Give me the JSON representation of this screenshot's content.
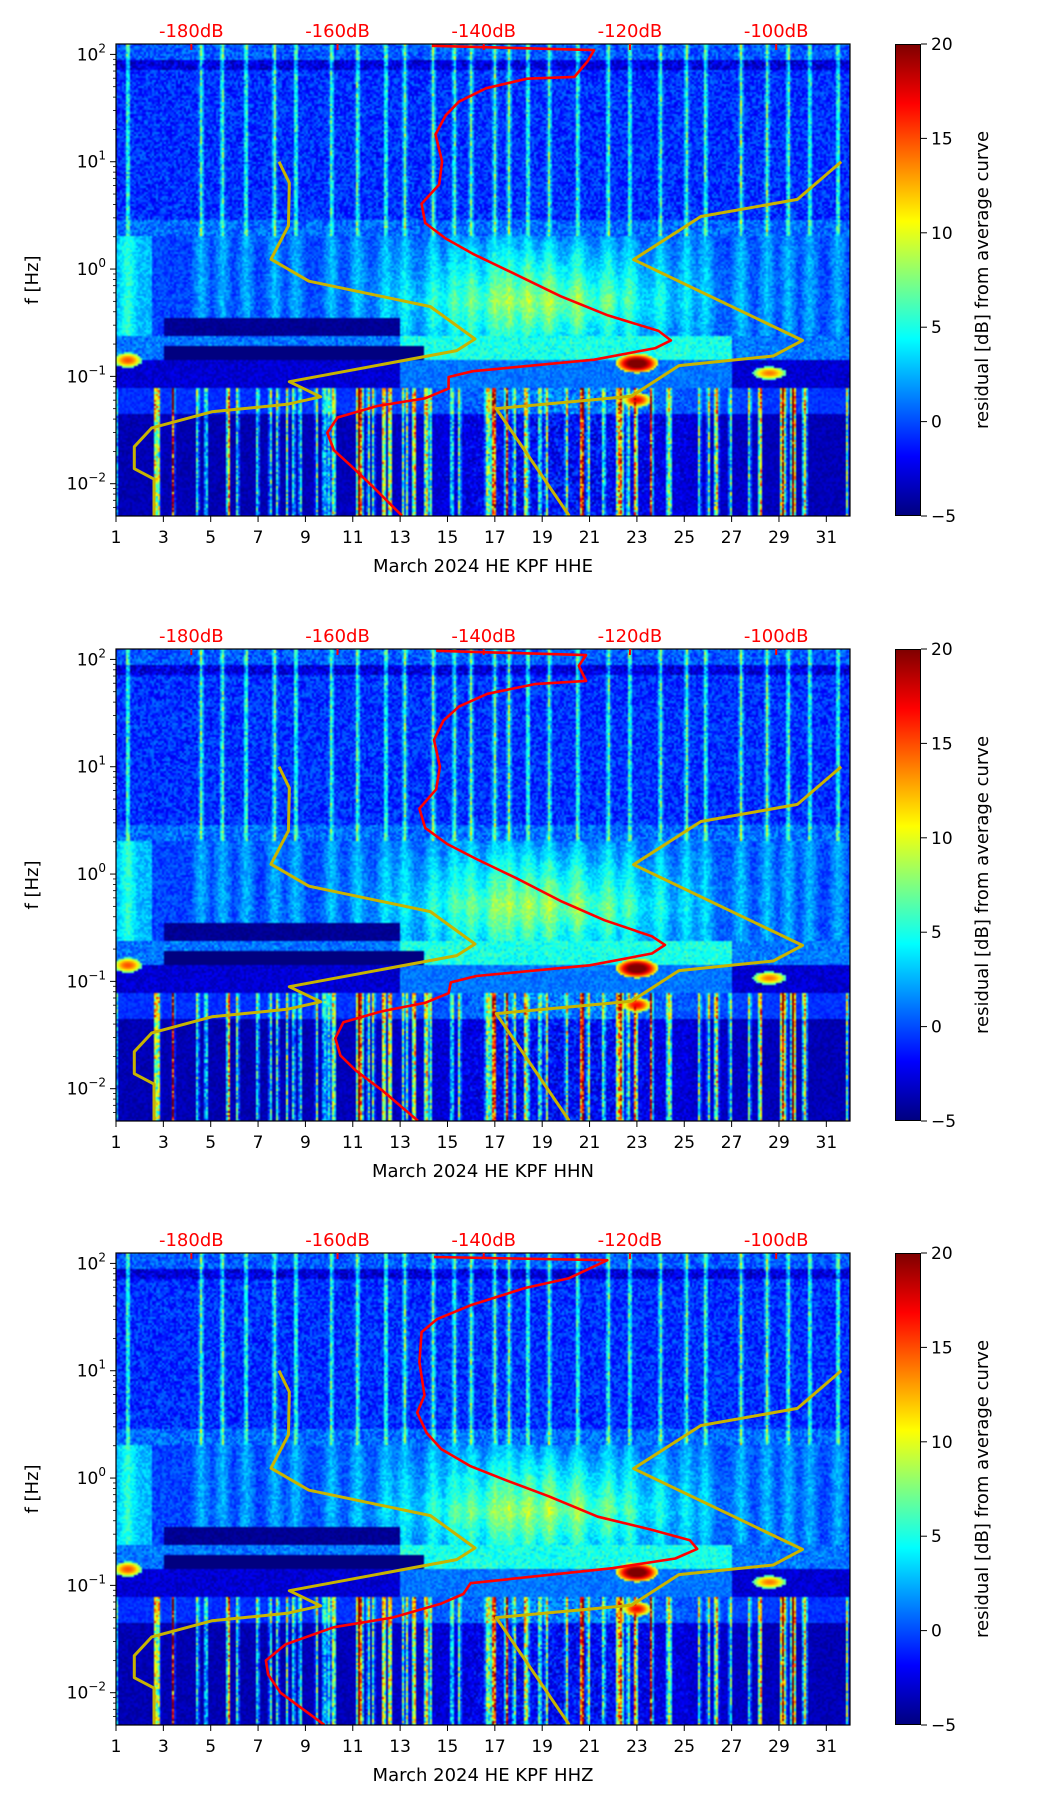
{
  "chart_data": [
    {
      "type": "heatmap",
      "xlabel": "March 2024 HE KPF  HHE",
      "ylabel": "f [Hz]",
      "colorbar_label": "residual [dB] from average curve",
      "xlim": [
        1,
        32
      ],
      "ylim": [
        0.005,
        125
      ],
      "yscale": "log",
      "top_axis_db_range": [
        -190.3,
        -89.9
      ],
      "clim": [
        -5,
        20
      ],
      "median_curve": {
        "color": "#ff0000",
        "points_db_logf": [
          [
            -147.1,
            2.08
          ],
          [
            -124.9,
            2.04
          ],
          [
            -125.8,
            1.935
          ],
          [
            -127.6,
            1.79
          ],
          [
            -134.1,
            1.774
          ],
          [
            -139.7,
            1.684
          ],
          [
            -143.4,
            1.559
          ],
          [
            -145.2,
            1.433
          ],
          [
            -146.6,
            1.254
          ],
          [
            -145.7,
            1.003
          ],
          [
            -146.1,
            0.787
          ],
          [
            -148.5,
            0.608
          ],
          [
            -148.0,
            0.429
          ],
          [
            -145.2,
            0.285
          ],
          [
            -141.5,
            0.142
          ],
          [
            -136.0,
            -0.038
          ],
          [
            -129.5,
            -0.253
          ],
          [
            -123.0,
            -0.432
          ],
          [
            -116.1,
            -0.576
          ],
          [
            -114.4,
            -0.665
          ],
          [
            -116.5,
            -0.737
          ],
          [
            -124.9,
            -0.845
          ],
          [
            -141.5,
            -0.952
          ],
          [
            -144.8,
            -1.006
          ],
          [
            -144.8,
            -1.114
          ],
          [
            -148.0,
            -1.204
          ],
          [
            -154.5,
            -1.275
          ],
          [
            -160.0,
            -1.383
          ],
          [
            -161.4,
            -1.526
          ],
          [
            -160.5,
            -1.688
          ],
          [
            -158.2,
            -1.831
          ],
          [
            -155.4,
            -2.011
          ],
          [
            -151.2,
            -2.298
          ]
        ]
      }
    },
    {
      "type": "heatmap",
      "xlabel": "March 2024 HE KPF  HHN",
      "ylabel": "f [Hz]",
      "colorbar_label": "residual [dB] from average curve",
      "xlim": [
        1,
        32
      ],
      "ylim": [
        0.005,
        125
      ],
      "yscale": "log",
      "top_axis_db_range": [
        -190.3,
        -89.9
      ],
      "clim": [
        -5,
        20
      ],
      "median_curve": {
        "color": "#ff0000",
        "points_db_logf": [
          [
            -146.5,
            2.08
          ],
          [
            -126.0,
            2.04
          ],
          [
            -127.0,
            1.94
          ],
          [
            -126.0,
            1.8
          ],
          [
            -133.0,
            1.77
          ],
          [
            -139.5,
            1.68
          ],
          [
            -143.4,
            1.56
          ],
          [
            -145.5,
            1.43
          ],
          [
            -146.8,
            1.25
          ],
          [
            -146.0,
            1.0
          ],
          [
            -146.5,
            0.79
          ],
          [
            -148.8,
            0.61
          ],
          [
            -148.0,
            0.43
          ],
          [
            -145.0,
            0.28
          ],
          [
            -141.0,
            0.14
          ],
          [
            -135.5,
            -0.04
          ],
          [
            -129.5,
            -0.25
          ],
          [
            -123.5,
            -0.43
          ],
          [
            -117.0,
            -0.58
          ],
          [
            -115.2,
            -0.66
          ],
          [
            -117.0,
            -0.74
          ],
          [
            -125.5,
            -0.85
          ],
          [
            -141.0,
            -0.95
          ],
          [
            -144.5,
            -1.01
          ],
          [
            -144.8,
            -1.11
          ],
          [
            -148.0,
            -1.2
          ],
          [
            -154.0,
            -1.28
          ],
          [
            -159.2,
            -1.38
          ],
          [
            -160.3,
            -1.53
          ],
          [
            -159.6,
            -1.69
          ],
          [
            -157.5,
            -1.83
          ],
          [
            -154.0,
            -2.01
          ],
          [
            -149.0,
            -2.298
          ]
        ]
      }
    },
    {
      "type": "heatmap",
      "xlabel": "March 2024 HE KPF  HHZ",
      "ylabel": "f [Hz]",
      "colorbar_label": "residual [dB] from average curve",
      "xlim": [
        1,
        32
      ],
      "ylim": [
        0.005,
        125
      ],
      "yscale": "log",
      "top_axis_db_range": [
        -190.3,
        -89.9
      ],
      "clim": [
        -5,
        20
      ],
      "median_curve": {
        "color": "#ff0000",
        "points_db_logf": [
          [
            -146.8,
            2.06
          ],
          [
            -123.1,
            2.03
          ],
          [
            -128.4,
            1.86
          ],
          [
            -134.4,
            1.77
          ],
          [
            -141.8,
            1.61
          ],
          [
            -146.4,
            1.48
          ],
          [
            -148.5,
            1.36
          ],
          [
            -148.8,
            1.08
          ],
          [
            -148.1,
            0.77
          ],
          [
            -149.1,
            0.61
          ],
          [
            -147.8,
            0.42
          ],
          [
            -145.8,
            0.27
          ],
          [
            -141.8,
            0.11
          ],
          [
            -137.1,
            -0.016
          ],
          [
            -131.1,
            -0.17
          ],
          [
            -124.4,
            -0.36
          ],
          [
            -117.1,
            -0.48
          ],
          [
            -111.8,
            -0.58
          ],
          [
            -110.8,
            -0.66
          ],
          [
            -113.8,
            -0.75
          ],
          [
            -122.4,
            -0.84
          ],
          [
            -141.8,
            -0.98
          ],
          [
            -142.8,
            -1.08
          ],
          [
            -145.8,
            -1.17
          ],
          [
            -152.5,
            -1.3
          ],
          [
            -160.5,
            -1.39
          ],
          [
            -167.1,
            -1.55
          ],
          [
            -169.8,
            -1.7
          ],
          [
            -169.5,
            -1.83
          ],
          [
            -167.8,
            -2.0
          ],
          [
            -161.8,
            -2.3
          ]
        ]
      }
    }
  ],
  "reference_curves": {
    "color": "#c8b400",
    "nlnm_db_logf": [
      [
        -168.0,
        1.0
      ],
      [
        -166.6,
        0.803
      ],
      [
        -166.7,
        0.404
      ],
      [
        -169.1,
        0.092
      ],
      [
        -163.9,
        -0.113
      ],
      [
        -147.3,
        -0.35
      ],
      [
        -141.2,
        -0.652
      ],
      [
        -143.7,
        -0.76
      ],
      [
        -166.6,
        -1.05
      ],
      [
        -162.3,
        -1.19
      ],
      [
        -166.9,
        -1.26
      ],
      [
        -177.2,
        -1.33
      ],
      [
        -185.4,
        -1.48
      ],
      [
        -187.8,
        -1.655
      ],
      [
        -187.8,
        -1.86
      ],
      [
        -185.1,
        -1.957
      ],
      [
        -185.1,
        -2.3
      ]
    ],
    "nhnm_db_logf": [
      [
        -91.1,
        1.0
      ],
      [
        -97.1,
        0.649
      ],
      [
        -110.3,
        0.49
      ],
      [
        -119.5,
        0.088
      ],
      [
        -96.4,
        -0.665
      ],
      [
        -100.4,
        -0.81
      ],
      [
        -113.3,
        -0.9
      ],
      [
        -119.8,
        -1.186
      ],
      [
        -138.3,
        -1.3
      ],
      [
        -128.3,
        -2.3
      ]
    ]
  },
  "x_ticks": [
    "1",
    "3",
    "5",
    "7",
    "9",
    "11",
    "13",
    "15",
    "17",
    "19",
    "21",
    "23",
    "25",
    "27",
    "29",
    "31"
  ],
  "y_ticks": [
    {
      "base": "10",
      "exp": "2"
    },
    {
      "base": "10",
      "exp": "1"
    },
    {
      "base": "10",
      "exp": "0"
    },
    {
      "base": "10",
      "exp": "−1"
    },
    {
      "base": "10",
      "exp": "−2"
    }
  ],
  "top_ticks": [
    "-180dB",
    "-160dB",
    "-140dB",
    "-120dB",
    "-100dB"
  ],
  "colorbar_ticks": [
    "20",
    "15",
    "10",
    "5",
    "0",
    "−5"
  ],
  "event_days": [
    1.5,
    4.6,
    5.5,
    6.5,
    7.7,
    8.6,
    10.1,
    11.2,
    12.4,
    13.2,
    14.4,
    15.3,
    16.0,
    17.0,
    17.6,
    18.4,
    19.3,
    20.5,
    21.8,
    22.7,
    24.0,
    25.1,
    25.9,
    27.4,
    28.5,
    29.4,
    30.3,
    31.5
  ]
}
